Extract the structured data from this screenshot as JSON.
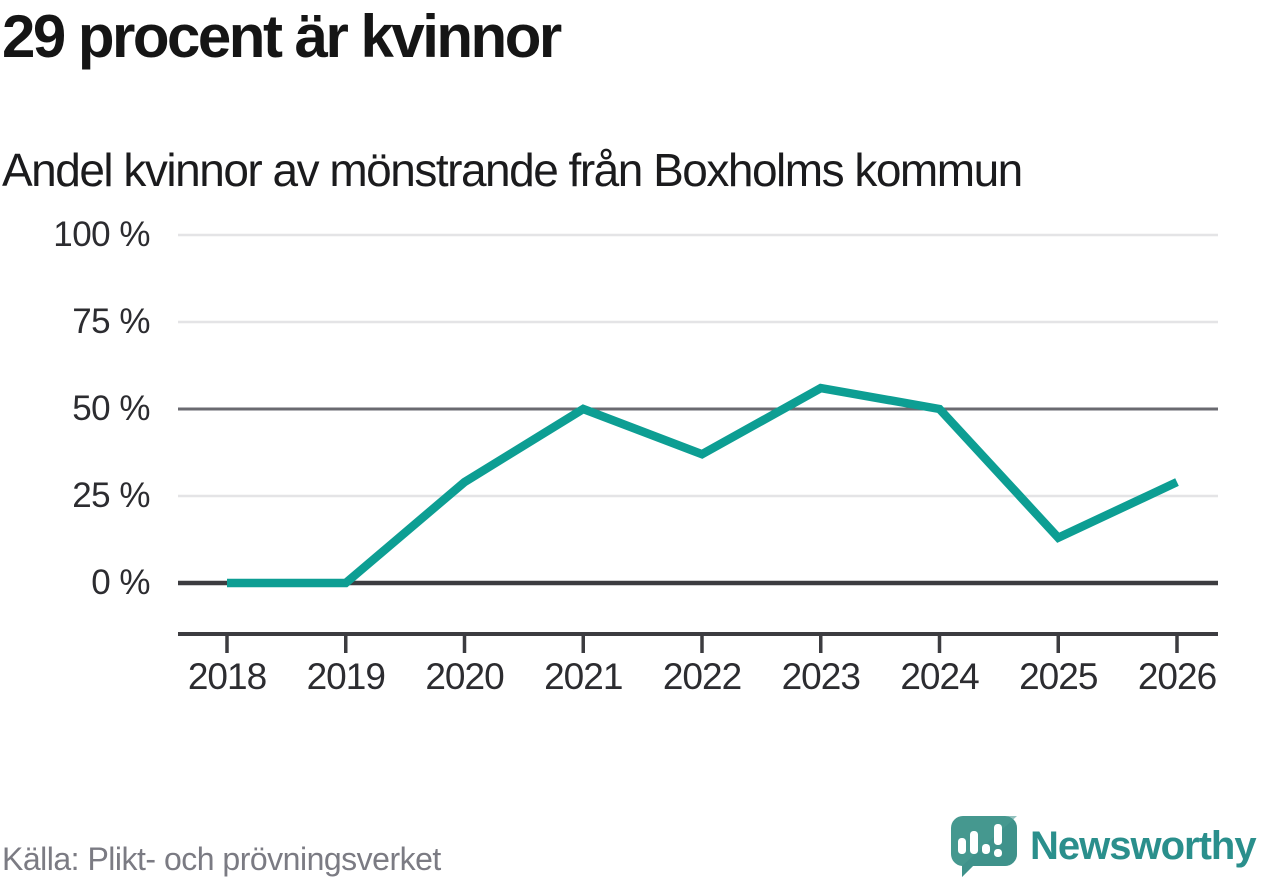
{
  "header": {
    "title": "29 procent är kvinnor",
    "subtitle": "Andel kvinnor av mönstrande från Boxholms kommun"
  },
  "chart_data": {
    "type": "line",
    "title": "29 procent är kvinnor",
    "subtitle": "Andel kvinnor av mönstrande från Boxholms kommun",
    "categories": [
      "2018",
      "2019",
      "2020",
      "2021",
      "2022",
      "2023",
      "2024",
      "2025",
      "2026"
    ],
    "values": [
      0,
      0,
      29,
      50,
      37,
      56,
      50,
      13,
      29
    ],
    "series_name": "Andel kvinnor av mönstrande",
    "unit": "%",
    "ylim": [
      0,
      100
    ],
    "yticks": [
      {
        "value": 100,
        "label": "100 %",
        "emphasis": "light"
      },
      {
        "value": 75,
        "label": "75 %",
        "emphasis": "light"
      },
      {
        "value": 50,
        "label": "50 %",
        "emphasis": "medium"
      },
      {
        "value": 25,
        "label": "25 %",
        "emphasis": "light"
      },
      {
        "value": 0,
        "label": "0 %",
        "emphasis": "strong"
      }
    ],
    "grid": "horizontal",
    "legend": "none",
    "line_color": "#0d9e93"
  },
  "footer": {
    "source": "Källa: Plikt- och prövningsverket",
    "brand": {
      "name": "Newsworthy",
      "icon": "newsworthy-logo-icon",
      "color": "#2a8f8c"
    }
  },
  "colors": {
    "line": "#0d9e93",
    "grid_light": "#e4e4e6",
    "grid_medium": "#6a6a70",
    "axis_dark": "#3c3c40",
    "text_dark": "#2c2c30",
    "text_muted": "#7b7b83",
    "brand_teal": "#2a8f8c",
    "logo_bubble": "#45988f",
    "logo_bubble_dark": "#3a8e88"
  }
}
